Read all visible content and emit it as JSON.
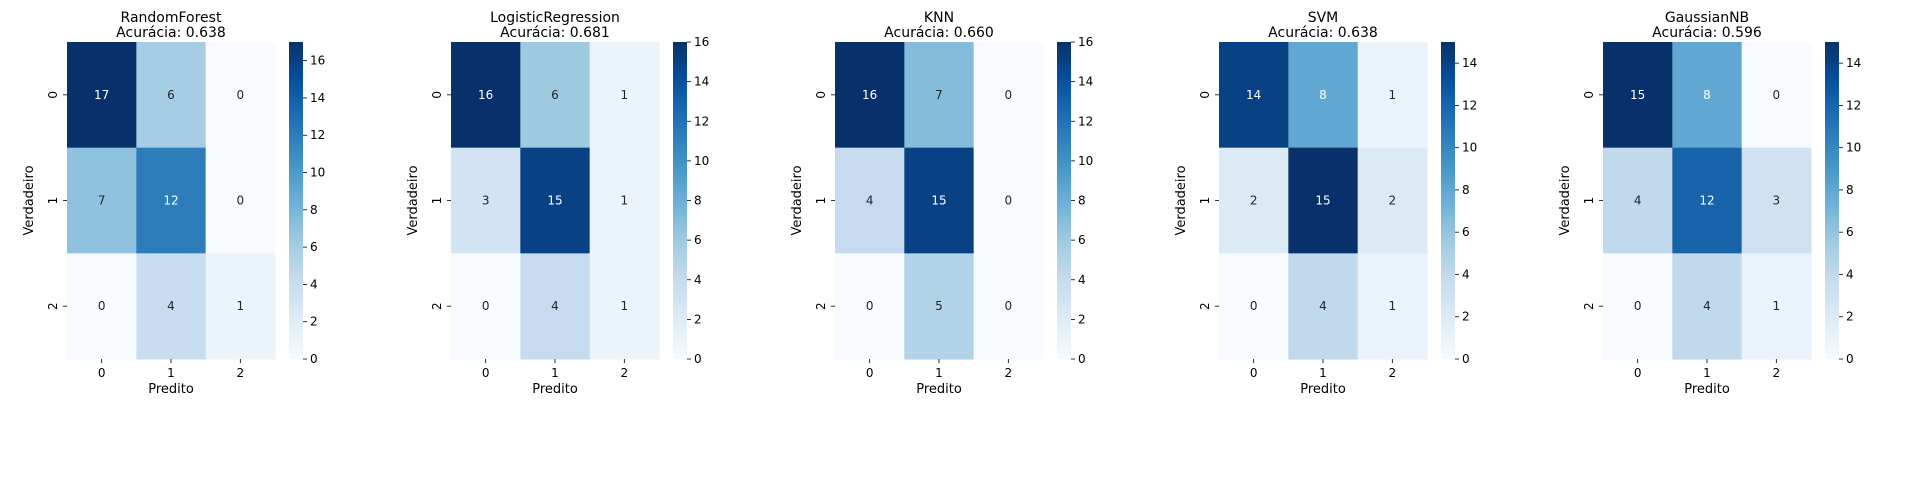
{
  "colormap": "Blues",
  "chart_data": [
    {
      "type": "heatmap",
      "title_line1": "RandomForest",
      "title_line2": "Acurácia: 0.638",
      "xlabel": "Predito",
      "ylabel": "Verdadeiro",
      "x_ticks": [
        "0",
        "1",
        "2"
      ],
      "y_ticks": [
        "0",
        "1",
        "2"
      ],
      "matrix": [
        [
          17,
          6,
          0
        ],
        [
          7,
          12,
          0
        ],
        [
          0,
          4,
          1
        ]
      ],
      "vmin": 0,
      "vmax": 17,
      "colorbar_ticks": [
        0,
        2,
        4,
        6,
        8,
        10,
        12,
        14,
        16
      ]
    },
    {
      "type": "heatmap",
      "title_line1": "LogisticRegression",
      "title_line2": "Acurácia: 0.681",
      "xlabel": "Predito",
      "ylabel": "Verdadeiro",
      "x_ticks": [
        "0",
        "1",
        "2"
      ],
      "y_ticks": [
        "0",
        "1",
        "2"
      ],
      "matrix": [
        [
          16,
          6,
          1
        ],
        [
          3,
          15,
          1
        ],
        [
          0,
          4,
          1
        ]
      ],
      "vmin": 0,
      "vmax": 16,
      "colorbar_ticks": [
        0,
        2,
        4,
        6,
        8,
        10,
        12,
        14,
        16
      ]
    },
    {
      "type": "heatmap",
      "title_line1": "KNN",
      "title_line2": "Acurácia: 0.660",
      "xlabel": "Predito",
      "ylabel": "Verdadeiro",
      "x_ticks": [
        "0",
        "1",
        "2"
      ],
      "y_ticks": [
        "0",
        "1",
        "2"
      ],
      "matrix": [
        [
          16,
          7,
          0
        ],
        [
          4,
          15,
          0
        ],
        [
          0,
          5,
          0
        ]
      ],
      "vmin": 0,
      "vmax": 16,
      "colorbar_ticks": [
        0,
        2,
        4,
        6,
        8,
        10,
        12,
        14,
        16
      ]
    },
    {
      "type": "heatmap",
      "title_line1": "SVM",
      "title_line2": "Acurácia: 0.638",
      "xlabel": "Predito",
      "ylabel": "Verdadeiro",
      "x_ticks": [
        "0",
        "1",
        "2"
      ],
      "y_ticks": [
        "0",
        "1",
        "2"
      ],
      "matrix": [
        [
          14,
          8,
          1
        ],
        [
          2,
          15,
          2
        ],
        [
          0,
          4,
          1
        ]
      ],
      "vmin": 0,
      "vmax": 15,
      "colorbar_ticks": [
        0,
        2,
        4,
        6,
        8,
        10,
        12,
        14
      ]
    },
    {
      "type": "heatmap",
      "title_line1": "GaussianNB",
      "title_line2": "Acurácia: 0.596",
      "xlabel": "Predito",
      "ylabel": "Verdadeiro",
      "x_ticks": [
        "0",
        "1",
        "2"
      ],
      "y_ticks": [
        "0",
        "1",
        "2"
      ],
      "matrix": [
        [
          15,
          8,
          0
        ],
        [
          4,
          12,
          3
        ],
        [
          0,
          4,
          1
        ]
      ],
      "vmin": 0,
      "vmax": 15,
      "colorbar_ticks": [
        0,
        2,
        4,
        6,
        8,
        10,
        12,
        14
      ]
    }
  ]
}
